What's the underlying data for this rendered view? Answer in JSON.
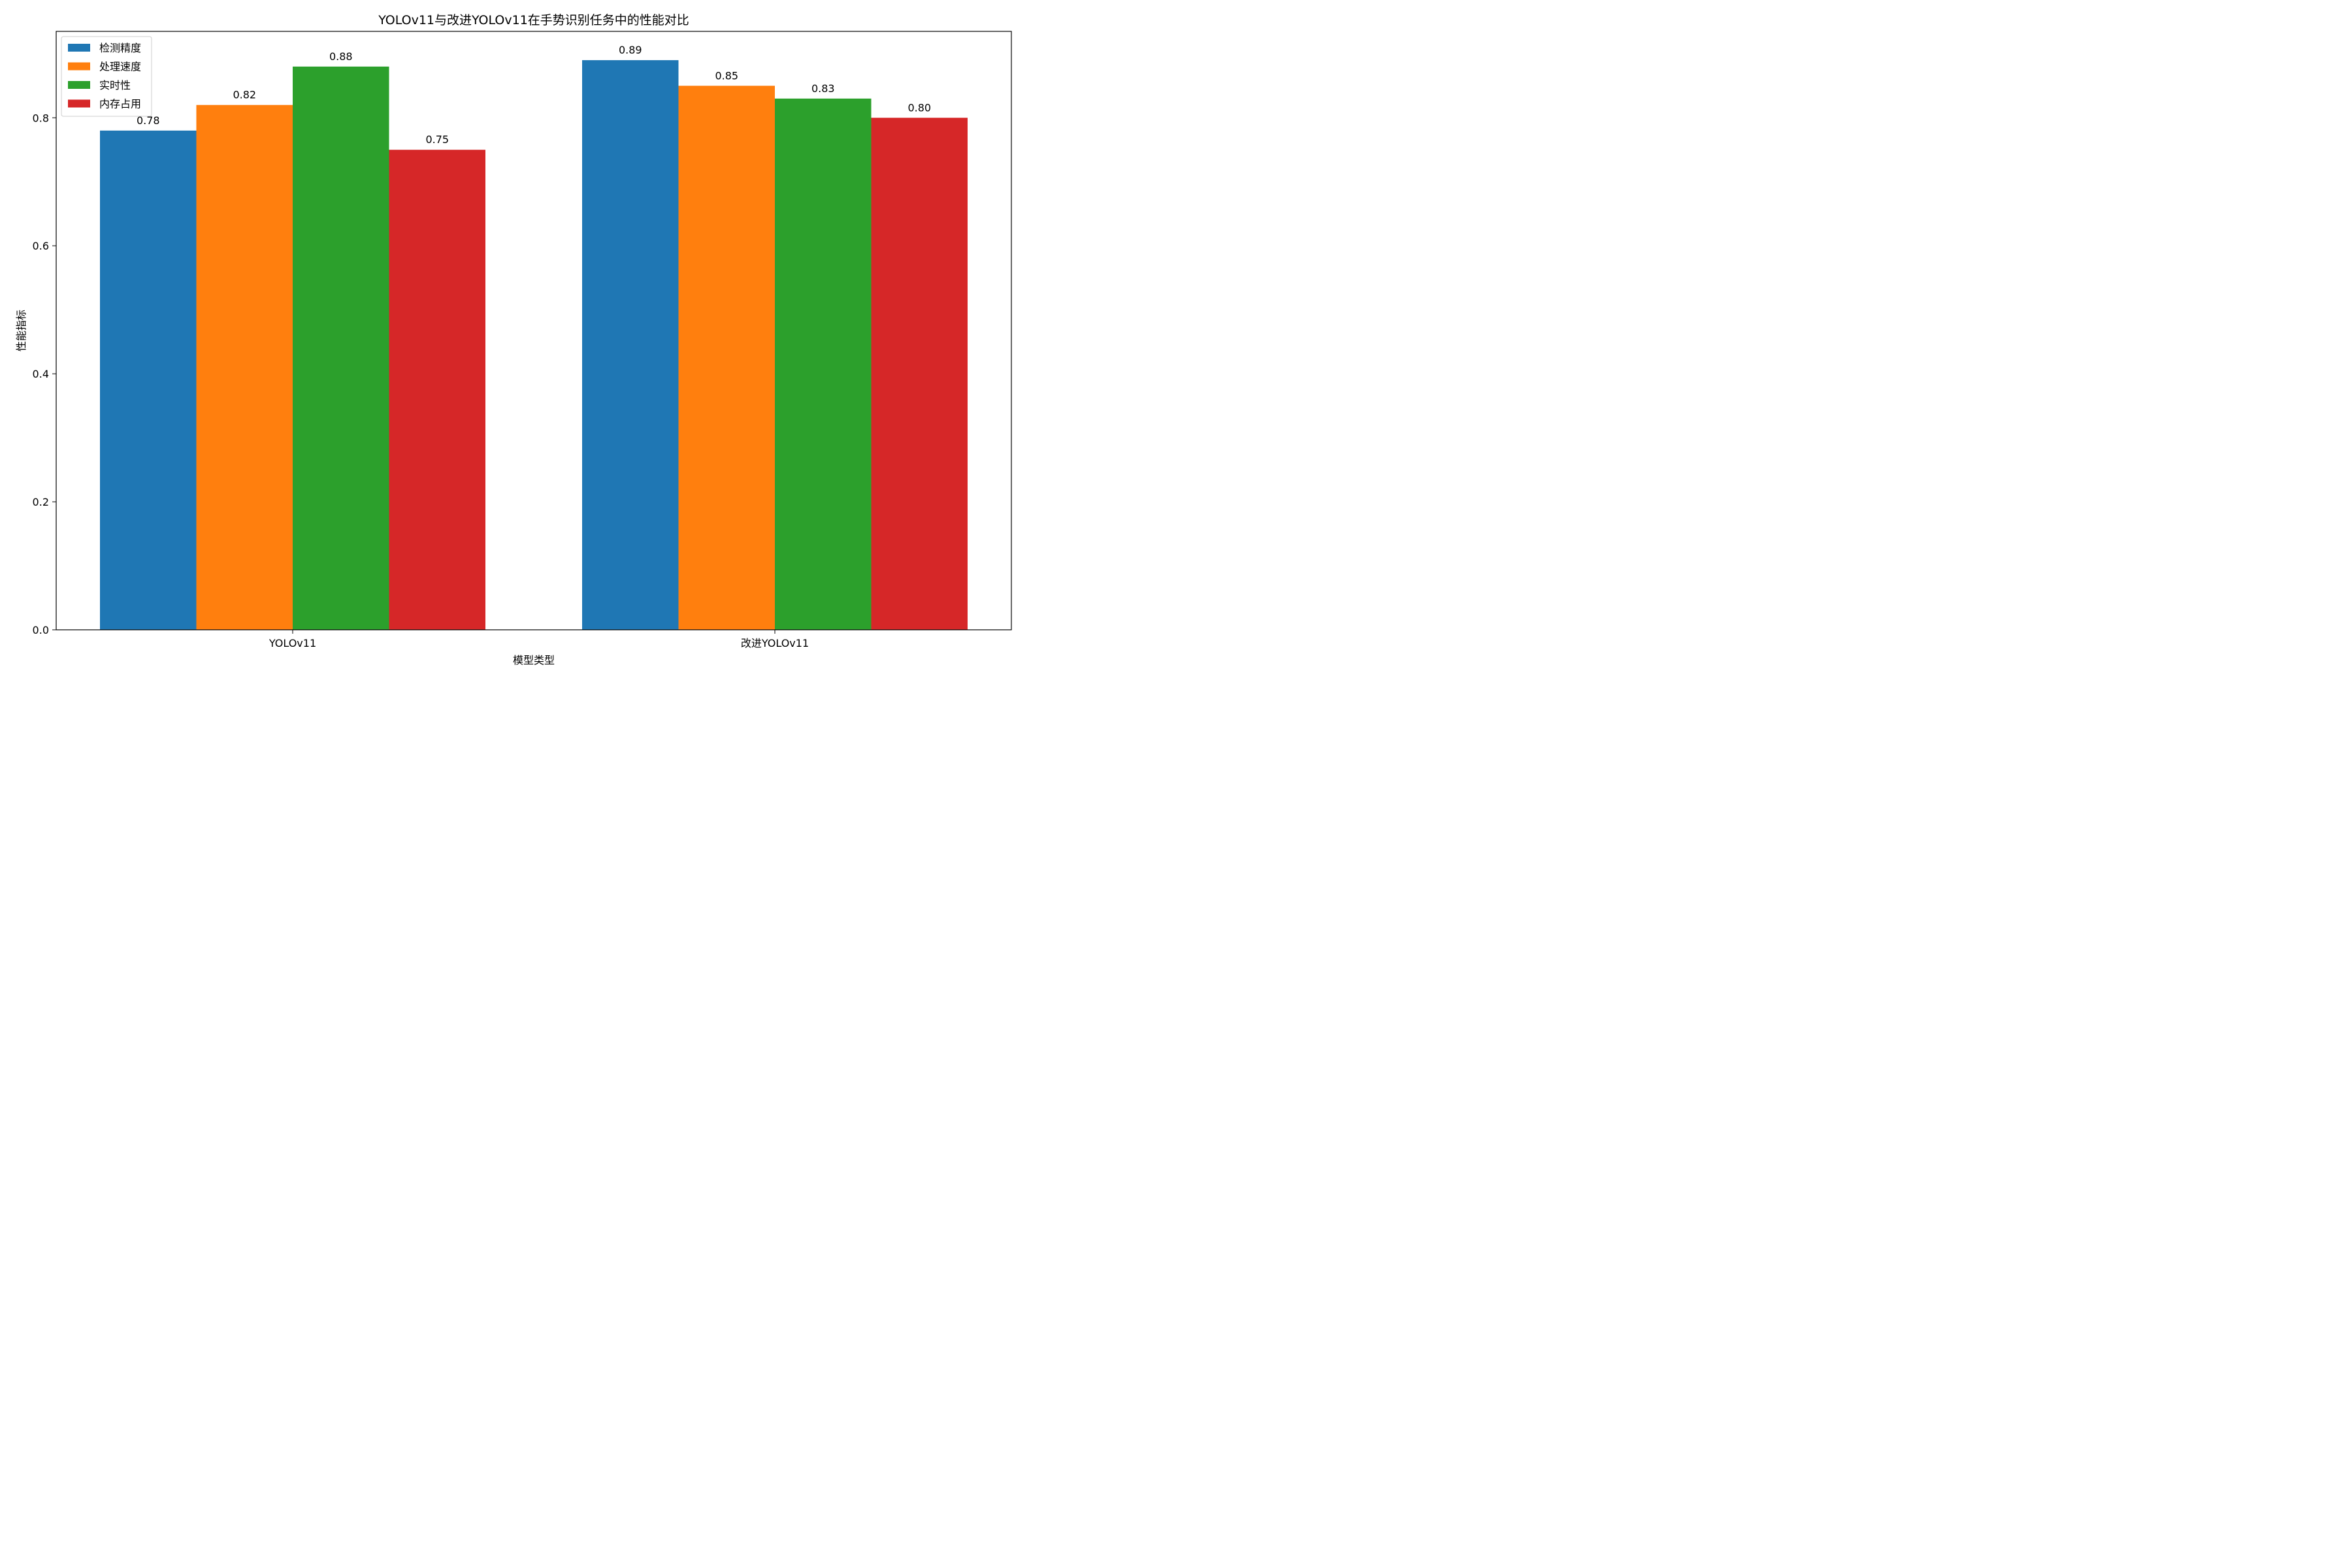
{
  "chart_data": {
    "type": "bar",
    "title": "YOLOv11与改进YOLOv11在手势识别任务中的性能对比",
    "xlabel": "模型类型",
    "ylabel": "性能指标",
    "categories": [
      "YOLOv11",
      "改进YOLOv11"
    ],
    "series": [
      {
        "name": "检测精度",
        "color": "#1f77b4",
        "values": [
          0.78,
          0.89
        ],
        "labels": [
          "0.78",
          "0.89"
        ]
      },
      {
        "name": "处理速度",
        "color": "#ff7f0e",
        "values": [
          0.82,
          0.85
        ],
        "labels": [
          "0.82",
          "0.85"
        ]
      },
      {
        "name": "实时性",
        "color": "#2ca02c",
        "values": [
          0.88,
          0.83
        ],
        "labels": [
          "0.88",
          "0.83"
        ]
      },
      {
        "name": "内存占用",
        "color": "#d62728",
        "values": [
          0.75,
          0.8
        ],
        "labels": [
          "0.75",
          "0.80"
        ]
      }
    ],
    "ylim": [
      0,
      0.935
    ],
    "yticks": [
      0.0,
      0.2,
      0.4,
      0.6,
      0.8
    ],
    "ytick_labels": [
      "0.0",
      "0.2",
      "0.4",
      "0.6",
      "0.8"
    ],
    "grid": false,
    "legend_position": "top-left"
  }
}
